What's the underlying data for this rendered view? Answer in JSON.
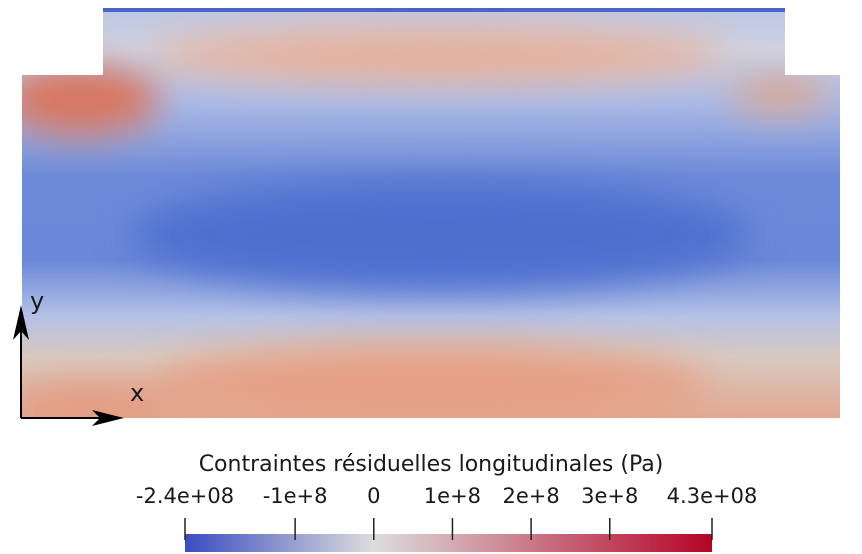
{
  "chart_data": {
    "type": "colormap",
    "title": "Contraintes résiduelles longitudinales (Pa)",
    "xlabel": "x",
    "ylabel": "y",
    "clim": [
      -240000000,
      430000000
    ],
    "ticks": [
      {
        "value": -240000000,
        "label": "-2.4e+08"
      },
      {
        "value": -100000000,
        "label": "-1e+8"
      },
      0,
      {
        "value": 100000000,
        "label": "1e+8"
      },
      {
        "value": 200000000,
        "label": "2e+8"
      },
      {
        "value": 300000000,
        "label": "3e+8"
      },
      {
        "value": 430000000,
        "label": "4.3e+08"
      }
    ],
    "colors": [
      "#3b4cc0",
      "#dddddd",
      "#b40426"
    ]
  }
}
